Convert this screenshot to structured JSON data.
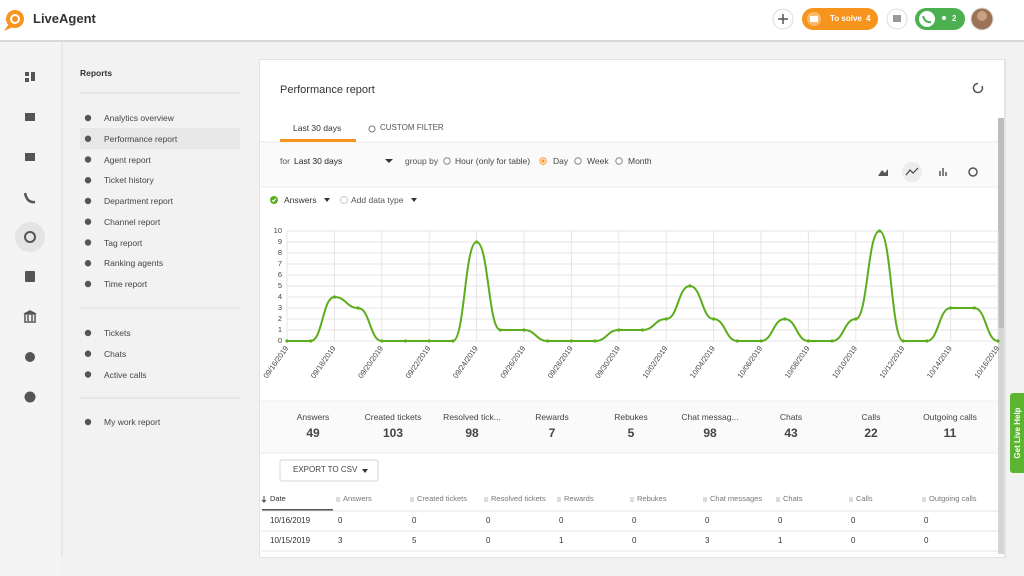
{
  "header": {
    "logo": "LiveAgent",
    "to_solve": "To solve",
    "to_solve_count": 4,
    "agents_count": 2
  },
  "reports_menu": {
    "title": "Reports",
    "groups": [
      [
        "Analytics overview",
        "Performance report",
        "Agent report",
        "Ticket history",
        "Department report",
        "Channel report",
        "Tag report",
        "Ranking agents",
        "Time report"
      ],
      [
        "Tickets",
        "Chats",
        "Active calls"
      ],
      [
        "My work report"
      ]
    ]
  },
  "report": {
    "title": "Performance report",
    "tabs": [
      "Last 30 days",
      "CUSTOM FILTER"
    ],
    "filter": {
      "for": "for",
      "period": "Last 30 days",
      "group_by": "group by",
      "options": [
        "Hour (only for table)",
        "Day",
        "Week",
        "Month"
      ]
    },
    "add_data_type": "Add data type",
    "summary": [
      {
        "label": "Answers",
        "value": 49
      },
      {
        "label": "Created tickets",
        "value": 103
      },
      {
        "label": "Resolved tick...",
        "value": 98
      },
      {
        "label": "Rewards",
        "value": 7
      },
      {
        "label": "Rebukes",
        "value": 5
      },
      {
        "label": "Chat messag...",
        "value": 98
      },
      {
        "label": "Chats",
        "value": 43
      },
      {
        "label": "Calls",
        "value": 22
      },
      {
        "label": "Outgoing calls",
        "value": 11
      }
    ],
    "export": "EXPORT TO CSV",
    "table": {
      "columns": [
        "Date",
        "Answers",
        "Created tickets",
        "Resolved tickets",
        "Rewards",
        "Rebukes",
        "Chat messages",
        "Chats",
        "Calls",
        "Outgoing calls"
      ],
      "rows": [
        [
          "10/16/2019",
          0,
          0,
          0,
          0,
          0,
          0,
          0,
          0,
          0
        ],
        [
          "10/15/2019",
          3,
          5,
          0,
          1,
          0,
          3,
          1,
          0,
          0
        ]
      ]
    }
  },
  "chart_data": {
    "type": "line",
    "categories": [
      "09/16/2019",
      null,
      "09/18/2019",
      null,
      "09/20/2019",
      null,
      "09/22/2019",
      null,
      "09/24/2019",
      null,
      "09/26/2019",
      null,
      "09/28/2019",
      null,
      "09/30/2019",
      null,
      "10/02/2019",
      null,
      "10/04/2019",
      null,
      "10/06/2019",
      null,
      "10/08/2019",
      null,
      "10/10/2019",
      null,
      "10/12/2019",
      null,
      "10/14/2019",
      null,
      "10/16/2019"
    ],
    "series": [
      {
        "name": "Answers",
        "color": "#5cad1e",
        "values": [
          0,
          0,
          4,
          3,
          0,
          0,
          0,
          0,
          9,
          1,
          1,
          0,
          0,
          0,
          1,
          1,
          2,
          5,
          2,
          0,
          0,
          2,
          0,
          0,
          2,
          10,
          0,
          0,
          3,
          3,
          0
        ]
      }
    ],
    "ylim": [
      0,
      10
    ],
    "yticks": [
      0,
      1,
      2,
      3,
      4,
      5,
      6,
      7,
      8,
      9,
      10
    ],
    "grid": true
  },
  "help": "Get Live Help"
}
